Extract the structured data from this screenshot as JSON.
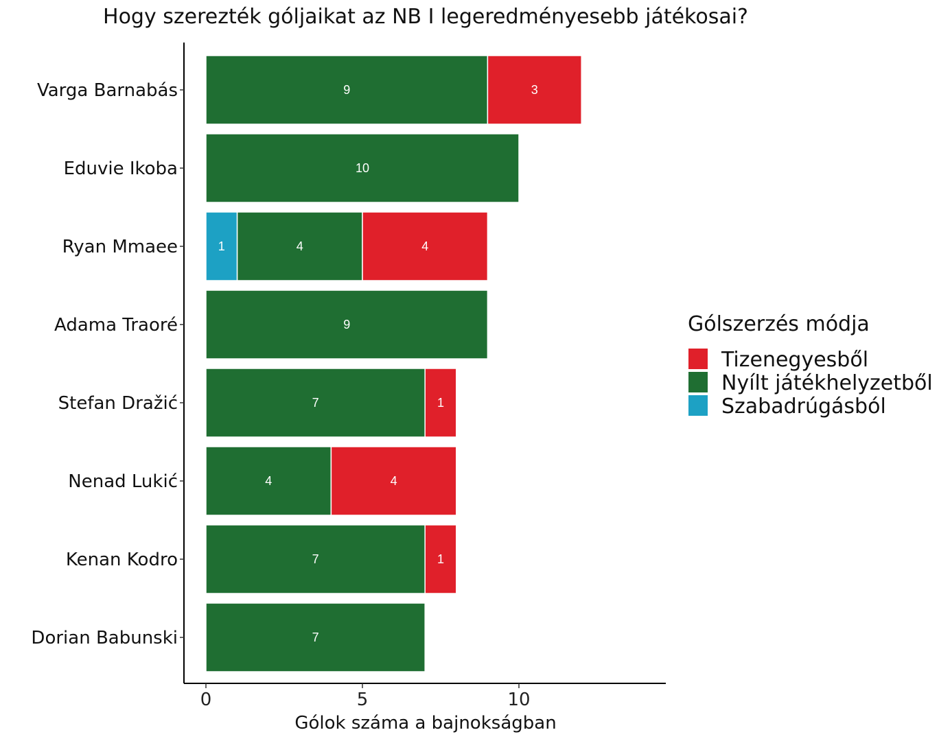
{
  "chart_data": {
    "type": "bar",
    "orientation": "horizontal",
    "stacked": true,
    "title": "Hogy szerezték góljaikat az NB I legeredményesebb játékosai?",
    "xlabel": "Gólok száma a bajnokságban",
    "ylabel": "",
    "xlim": [
      0,
      14.5
    ],
    "x_ticks": [
      0,
      5,
      10
    ],
    "grid": false,
    "legend_position": "right",
    "legend_title": "Gólszerzés módja",
    "categories": [
      "Varga Barnabás",
      "Eduvie Ikoba",
      "Ryan Mmaee",
      "Adama Traoré",
      "Stefan Dražić",
      "Nenad Lukić",
      "Kenan Kodro",
      "Dorian Babunski"
    ],
    "stack_order": [
      "Szabadrúgásból",
      "Nyílt játékhelyzetből",
      "Tizenegyesből"
    ],
    "series": [
      {
        "name": "Tizenegyesből",
        "color": "#E0202A",
        "values": [
          3,
          0,
          4,
          0,
          1,
          4,
          1,
          0
        ]
      },
      {
        "name": "Nyílt játékhelyzetből",
        "color": "#1F6E32",
        "values": [
          9,
          10,
          4,
          9,
          7,
          4,
          7,
          7
        ]
      },
      {
        "name": "Szabadrúgásból",
        "color": "#1DA1C4",
        "values": [
          0,
          0,
          1,
          0,
          0,
          0,
          0,
          0
        ]
      }
    ]
  }
}
